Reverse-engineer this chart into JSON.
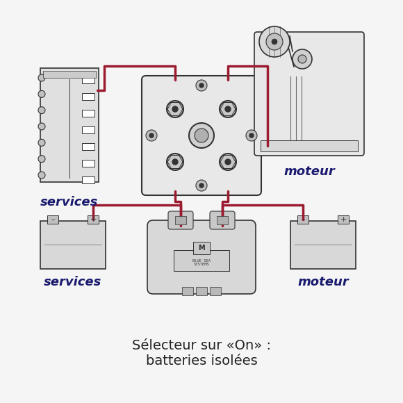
{
  "bg_color": "#f5f5f5",
  "wire_color": "#9B1B30",
  "outline_color": "#333333",
  "label_color": "#1a1a6e",
  "title_color": "#222222",
  "title_line1": "Sélecteur sur «On» :",
  "title_line2": "batteries isolées",
  "label_services_top": "services",
  "label_moteur_top": "moteur",
  "label_services_bot": "services",
  "label_moteur_bot": "moteur",
  "title_fontsize": 14,
  "label_fontsize": 13
}
